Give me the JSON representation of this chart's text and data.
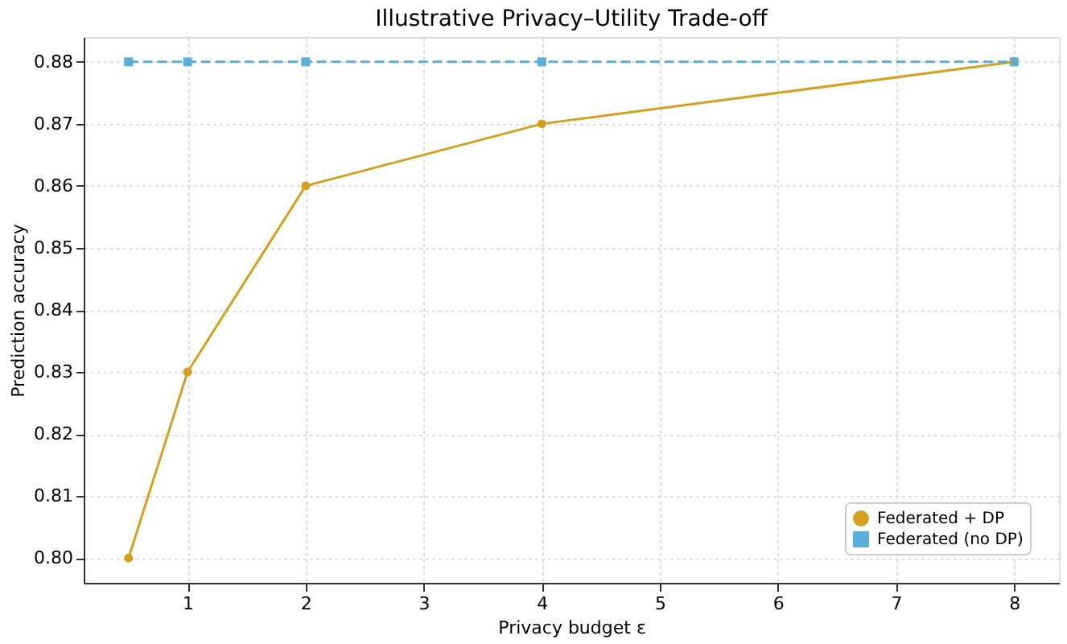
{
  "chart_data": {
    "type": "line",
    "title": "Illustrative Privacy–Utility Trade-off",
    "xlabel": "Privacy budget ε",
    "ylabel": "Prediction accuracy",
    "x": [
      0.5,
      1,
      2,
      4,
      8
    ],
    "series": [
      {
        "name": "Federated + DP",
        "color": "#d4a020",
        "values": [
          0.8,
          0.83,
          0.86,
          0.87,
          0.88
        ],
        "marker": "circle",
        "line_style": "solid"
      },
      {
        "name": "Federated (no DP)",
        "color": "#5aafd8",
        "values": [
          0.88,
          0.88,
          0.88,
          0.88,
          0.88
        ],
        "marker": "square",
        "line_style": "dashed"
      }
    ],
    "xlim": [
      0.12,
      8.38
    ],
    "xticks": [
      1,
      2,
      3,
      4,
      5,
      6,
      7,
      8
    ],
    "ylim": [
      0.796,
      0.884
    ],
    "yticks": [
      {
        "value": 0.8,
        "label": "0.80"
      },
      {
        "value": 0.81,
        "label": "0.81"
      },
      {
        "value": 0.82,
        "label": "0.82"
      },
      {
        "value": 0.83,
        "label": "0.83"
      },
      {
        "value": 0.84,
        "label": "0.84"
      },
      {
        "value": 0.85,
        "label": "0.85"
      },
      {
        "value": 0.86,
        "label": "0.86"
      },
      {
        "value": 0.87,
        "label": "0.87"
      },
      {
        "value": 0.88,
        "label": "0.88"
      }
    ],
    "grid": true,
    "legend": "bottom right"
  }
}
